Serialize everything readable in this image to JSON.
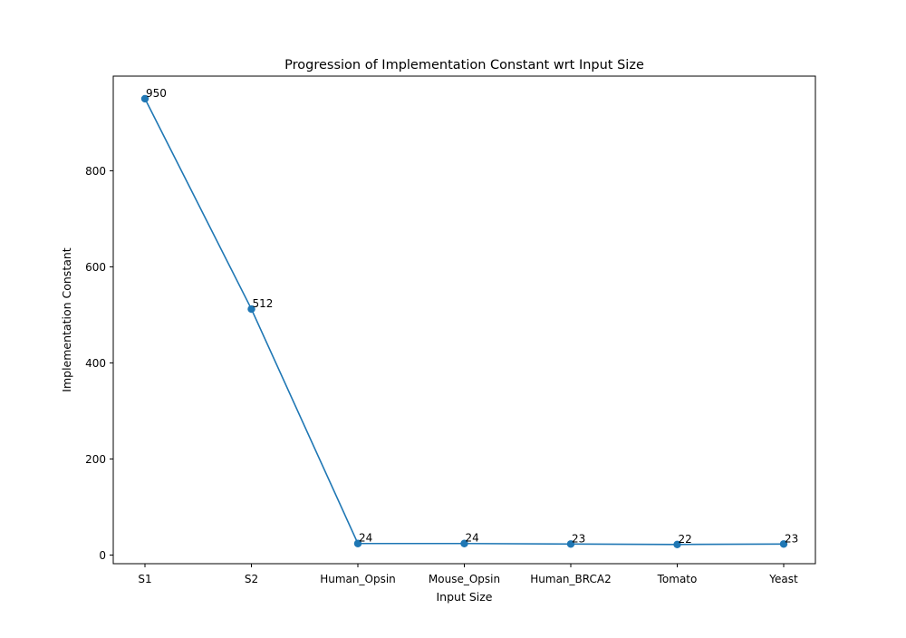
{
  "chart_data": {
    "type": "line",
    "title": "Progression of Implementation Constant wrt Input Size",
    "xlabel": "Input Size",
    "ylabel": "Implementation Constant",
    "categories": [
      "S1",
      "S2",
      "Human_Opsin",
      "Mouse_Opsin",
      "Human_BRCA2",
      "Tomato",
      "Yeast"
    ],
    "series": [
      {
        "values": [
          950,
          512,
          24,
          24,
          23,
          22,
          23
        ],
        "data_labels": [
          "950",
          "512",
          "24",
          "24",
          "23",
          "22",
          "23"
        ],
        "color": "#1f77b4",
        "marker": "circle"
      }
    ],
    "ylim": [
      -18,
      997
    ],
    "yticks": [
      0,
      200,
      400,
      600,
      800
    ],
    "ytick_labels": [
      "0",
      "200",
      "400",
      "600",
      "800"
    ],
    "grid": false,
    "legend": "none"
  }
}
